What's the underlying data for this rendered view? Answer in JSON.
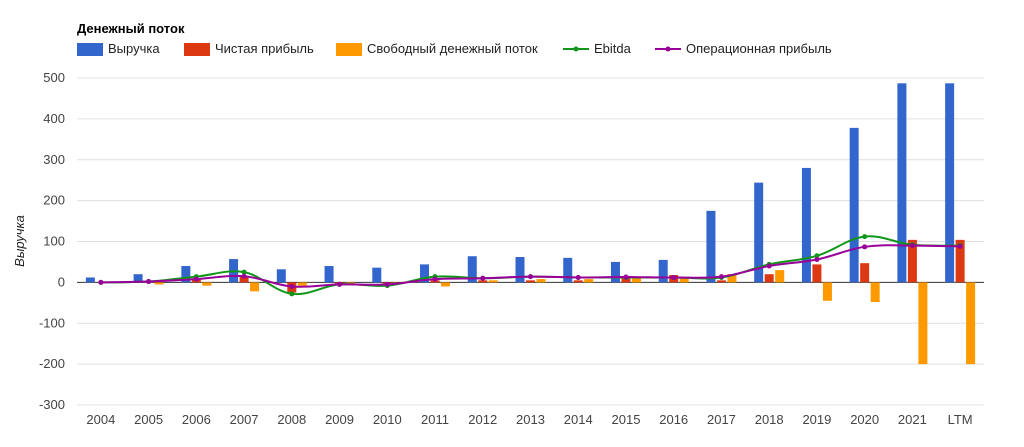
{
  "chart_data": {
    "type": "bar",
    "title": "Денежный поток",
    "ylabel": "Выручка",
    "xlabel": "",
    "ylim": [
      -300,
      500
    ],
    "yticks": [
      500,
      400,
      300,
      200,
      100,
      0,
      -100,
      -200,
      -300
    ],
    "grid": true,
    "legend_position": "top-left",
    "categories": [
      "2004",
      "2005",
      "2006",
      "2007",
      "2008",
      "2009",
      "2010",
      "2011",
      "2012",
      "2013",
      "2014",
      "2015",
      "2016",
      "2017",
      "2018",
      "2019",
      "2020",
      "2021",
      "LTM"
    ],
    "series": [
      {
        "name": "Выручка",
        "kind": "bar",
        "color": "#3366cc",
        "values": [
          12,
          20,
          40,
          57,
          32,
          40,
          36,
          44,
          64,
          62,
          60,
          50,
          55,
          175,
          244,
          280,
          378,
          487,
          487
        ]
      },
      {
        "name": "Чистая прибыль",
        "kind": "bar",
        "color": "#dc3912",
        "values": [
          0,
          0,
          10,
          15,
          -25,
          -5,
          -5,
          5,
          5,
          5,
          5,
          15,
          18,
          5,
          20,
          44,
          47,
          104,
          104
        ]
      },
      {
        "name": "Свободный денежный поток",
        "kind": "bar",
        "color": "#ff9900",
        "values": [
          0,
          -5,
          -8,
          -22,
          -8,
          -5,
          -5,
          -10,
          5,
          8,
          8,
          10,
          12,
          20,
          30,
          -45,
          -48,
          -200,
          -200
        ]
      },
      {
        "name": "Ebitda",
        "kind": "line",
        "color": "#109618",
        "values": [
          0,
          2,
          14,
          25,
          -28,
          -5,
          -8,
          14,
          10,
          14,
          12,
          12,
          12,
          12,
          44,
          65,
          112,
          92,
          90
        ]
      },
      {
        "name": "Операционная прибыль",
        "kind": "line",
        "color": "#990099",
        "values": [
          0,
          2,
          8,
          15,
          -10,
          -5,
          -5,
          8,
          10,
          14,
          12,
          13,
          12,
          14,
          40,
          56,
          87,
          90,
          88
        ]
      }
    ]
  }
}
